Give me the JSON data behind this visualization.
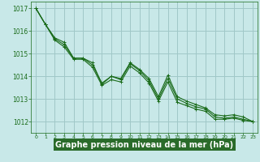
{
  "background_color": "#c8e8e8",
  "grid_color": "#a0c8c8",
  "line_color": "#1a6b1a",
  "marker_color": "#1a6b1a",
  "xlabel": "Graphe pression niveau de la mer (hPa)",
  "xlabel_fontsize": 7,
  "xlabel_bg": "#2a6b2a",
  "xlabel_fg": "#ffffff",
  "yticks": [
    1012,
    1013,
    1014,
    1015,
    1016,
    1017
  ],
  "xticks": [
    0,
    1,
    2,
    3,
    4,
    5,
    6,
    7,
    8,
    9,
    10,
    11,
    12,
    13,
    14,
    15,
    16,
    17,
    18,
    19,
    20,
    21,
    22,
    23
  ],
  "xlim": [
    -0.5,
    23.5
  ],
  "ylim": [
    1011.5,
    1017.3
  ],
  "series": [
    [
      1017.0,
      1016.3,
      1015.7,
      1015.5,
      1014.8,
      1014.8,
      1014.6,
      1013.65,
      1014.0,
      1013.9,
      1014.6,
      1014.3,
      1013.9,
      1013.1,
      1014.05,
      1013.1,
      1012.9,
      1012.75,
      1012.6,
      1012.3,
      1012.25,
      1012.3,
      1012.2,
      1012.0
    ],
    [
      1017.0,
      1016.3,
      1015.65,
      1015.4,
      1014.8,
      1014.8,
      1014.5,
      1013.7,
      1014.0,
      1013.85,
      1014.55,
      1014.25,
      1013.8,
      1013.0,
      1013.9,
      1013.0,
      1012.8,
      1012.65,
      1012.55,
      1012.2,
      1012.15,
      1012.2,
      1012.1,
      1012.0
    ],
    [
      1017.0,
      1016.3,
      1015.6,
      1015.3,
      1014.75,
      1014.75,
      1014.4,
      1013.6,
      1013.85,
      1013.75,
      1014.45,
      1014.15,
      1013.7,
      1012.9,
      1013.75,
      1012.85,
      1012.7,
      1012.55,
      1012.45,
      1012.1,
      1012.1,
      1012.15,
      1012.05,
      1012.0
    ]
  ]
}
